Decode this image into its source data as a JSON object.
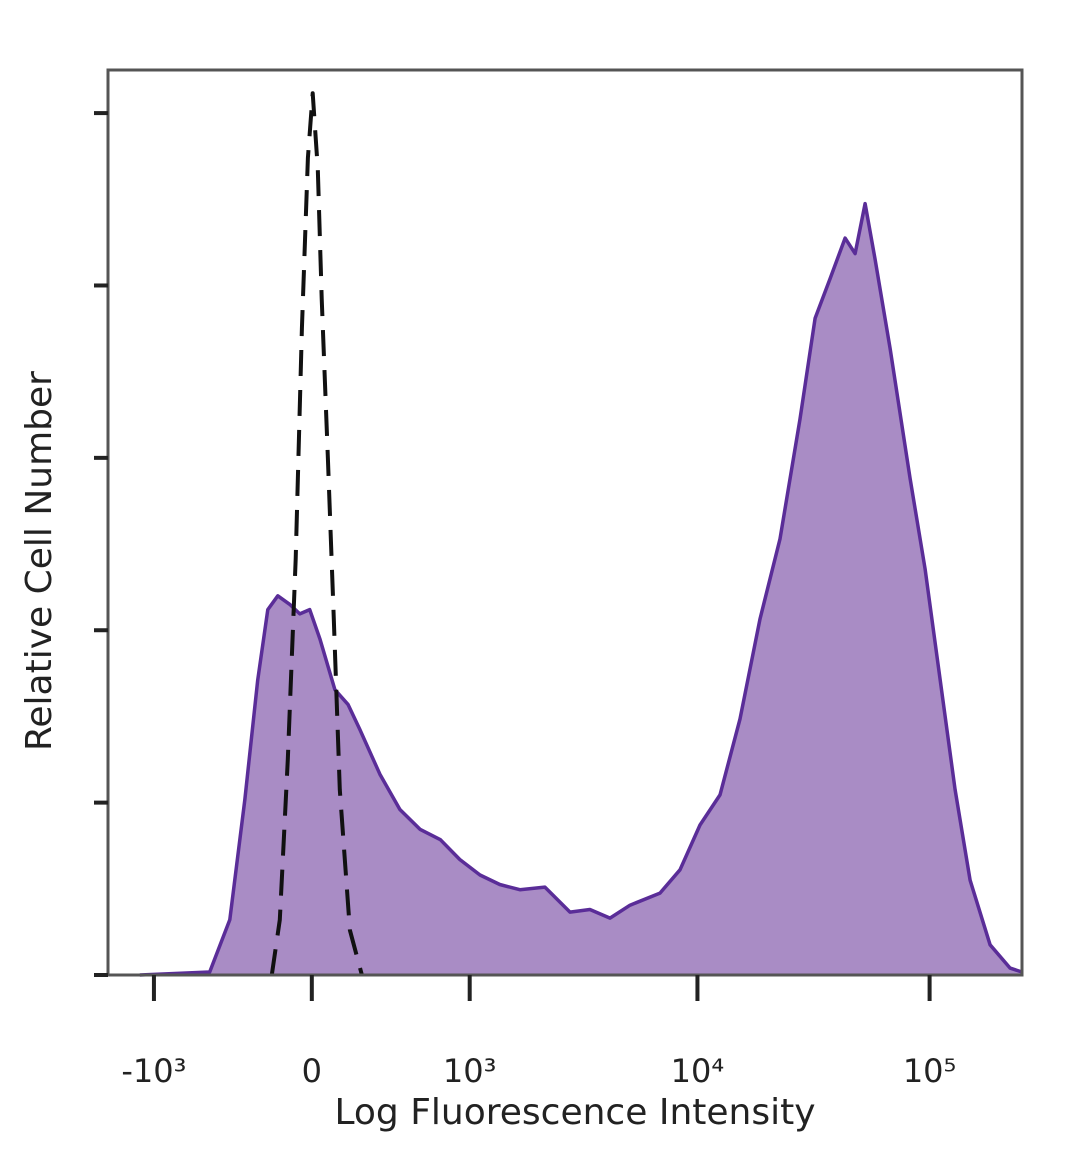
{
  "chart_data": {
    "type": "area",
    "xlabel": "Log Fluorescence Intensity",
    "ylabel": "Relative Cell Number",
    "xscale": "asinh",
    "xlim": [
      -1620,
      250000
    ],
    "xticks": [
      {
        "value": -1000,
        "label": "-10³"
      },
      0,
      {
        "value": 1000,
        "label": "10³"
      },
      {
        "value": 10000,
        "label": "10⁴"
      },
      {
        "value": 100000,
        "label": "10⁵"
      }
    ],
    "ylim": [
      0,
      105
    ],
    "yticks": [
      0,
      20,
      40,
      60,
      80,
      100
    ],
    "series": [
      {
        "color": "#5a2d98",
        "fill": "#a98cc5",
        "dash": false,
        "x": [
          -1163,
          -522,
          -396,
          -312,
          -246,
          -197,
          -150,
          -96,
          -52,
          -9,
          35,
          101,
          160,
          216,
          318,
          432,
          564,
          721,
          898,
          1117,
          1376,
          1693,
          2182,
          2810,
          3430,
          4191,
          5117,
          6892,
          8408,
          10252,
          12507,
          15256,
          18599,
          22680,
          27662,
          32120,
          37276,
          43263,
          47764,
          52746,
          58208,
          67560,
          82418,
          95616,
          110998,
          128784,
          149454,
          182185,
          222171,
          250000
        ],
        "values": [
          0,
          0.35,
          6.4,
          20.3,
          34.2,
          42.4,
          44.0,
          43.0,
          41.9,
          42.4,
          39.0,
          33.1,
          31.4,
          28.5,
          23.3,
          19.2,
          16.9,
          15.7,
          13.4,
          11.6,
          10.5,
          9.9,
          10.2,
          7.3,
          7.6,
          6.6,
          8.1,
          9.5,
          12.2,
          17.4,
          20.9,
          29.7,
          41.3,
          50.6,
          64.5,
          76.2,
          80.8,
          85.5,
          83.7,
          89.5,
          83.1,
          72.7,
          57.6,
          47.1,
          34.3,
          21.5,
          11.0,
          3.5,
          0.8,
          0.35
        ]
      },
      {
        "color": "#111111",
        "fill": null,
        "dash": true,
        "x": [
          -178,
          -141,
          -105,
          -70,
          -43,
          -17,
          4,
          26,
          43,
          70,
          96,
          123,
          169,
          226
        ],
        "values": [
          0,
          6.4,
          25.0,
          48.3,
          75.0,
          94.8,
          102.3,
          93.5,
          78.5,
          59.9,
          41.3,
          21.5,
          5.2,
          0
        ]
      }
    ]
  }
}
